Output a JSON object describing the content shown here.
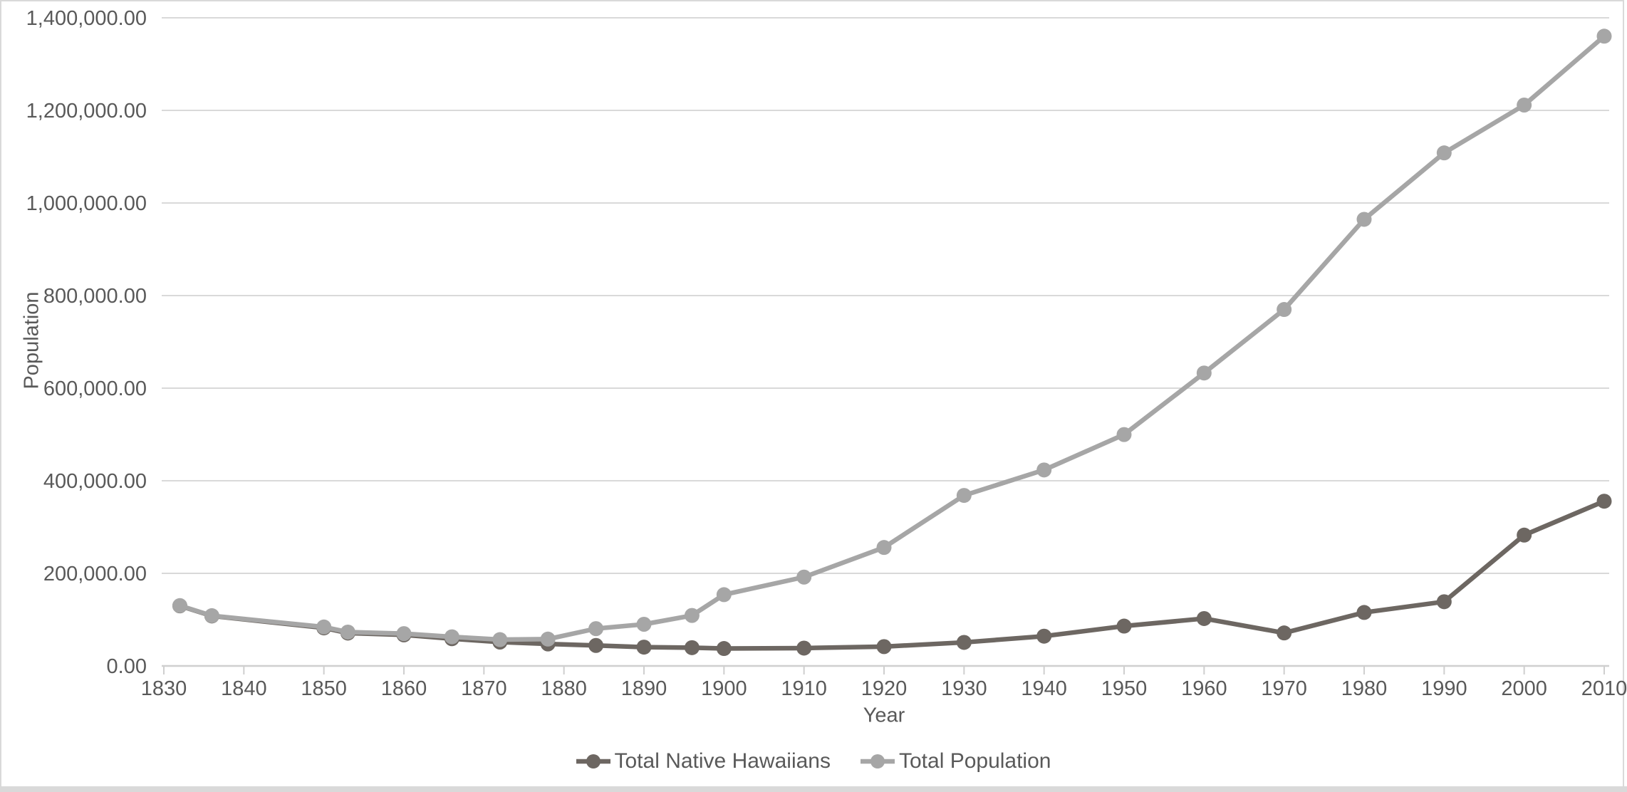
{
  "window": {
    "background": "#ffffff",
    "frame_border_color": "#d9d9d9",
    "bottom_edge_color": "#d9d9d9"
  },
  "chart_data": {
    "type": "line",
    "title": "",
    "xlabel": "Year",
    "ylabel": "Population",
    "xlim": [
      1830,
      2010
    ],
    "ylim": [
      0,
      1400000
    ],
    "grid": true,
    "legend_position": "bottom",
    "x_tick_labels": [
      "1830",
      "1840",
      "1850",
      "1860",
      "1870",
      "1880",
      "1890",
      "1900",
      "1910",
      "1920",
      "1930",
      "1940",
      "1950",
      "1960",
      "1970",
      "1980",
      "1990",
      "2000",
      "2010"
    ],
    "y_tick_labels": [
      "0.00",
      "200,000.00",
      "400,000.00",
      "600,000.00",
      "800,000.00",
      "1,000,000.00",
      "1,200,000.00",
      "1,400,000.00"
    ],
    "x": [
      1832,
      1836,
      1850,
      1853,
      1860,
      1866,
      1872,
      1878,
      1884,
      1890,
      1896,
      1900,
      1910,
      1920,
      1930,
      1940,
      1950,
      1960,
      1970,
      1980,
      1990,
      2000,
      2010
    ],
    "series": [
      {
        "name": "Total Native Hawaiians",
        "color": "#6d6762",
        "values": [
          129814,
          107954,
          82203,
          71019,
          67084,
          58765,
          51531,
          47508,
          44232,
          40622,
          39504,
          37656,
          38547,
          41750,
          50860,
          64310,
          86090,
          102403,
          71274,
          115500,
          138742,
          282667,
          355816
        ]
      },
      {
        "name": "Total Population",
        "color": "#a6a6a6",
        "values": [
          130313,
          108579,
          84165,
          73138,
          69800,
          62959,
          56897,
          57985,
          80578,
          89990,
          109020,
          154001,
          191909,
          255912,
          368336,
          423330,
          499794,
          632772,
          769913,
          964691,
          1108229,
          1211537,
          1360301
        ]
      }
    ],
    "text_color": "#595959",
    "grid_color": "#d9d9d9",
    "axis_color": "#cfcfcf"
  }
}
